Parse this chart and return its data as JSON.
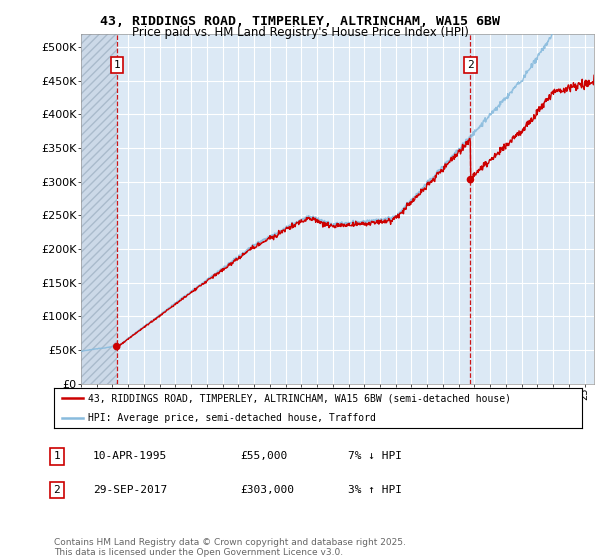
{
  "title_line1": "43, RIDDINGS ROAD, TIMPERLEY, ALTRINCHAM, WA15 6BW",
  "title_line2": "Price paid vs. HM Land Registry's House Price Index (HPI)",
  "ylim": [
    0,
    520000
  ],
  "yticks": [
    0,
    50000,
    100000,
    150000,
    200000,
    250000,
    300000,
    350000,
    400000,
    450000,
    500000
  ],
  "ytick_labels": [
    "£0",
    "£50K",
    "£100K",
    "£150K",
    "£200K",
    "£250K",
    "£300K",
    "£350K",
    "£400K",
    "£450K",
    "£500K"
  ],
  "xlim_start": 1993,
  "xlim_end": 2025.6,
  "plot_bg_color": "#dce9f5",
  "hatch_bg_color": "#ccd9e8",
  "grid_color": "#ffffff",
  "sale1_x": 1995.27,
  "sale1_y": 55000,
  "sale2_x": 2017.75,
  "sale2_y": 303000,
  "sale_color": "#cc0000",
  "hpi_color": "#88bbdd",
  "legend_label1": "43, RIDDINGS ROAD, TIMPERLEY, ALTRINCHAM, WA15 6BW (semi-detached house)",
  "legend_label2": "HPI: Average price, semi-detached house, Trafford",
  "footer_text": "Contains HM Land Registry data © Crown copyright and database right 2025.\nThis data is licensed under the Open Government Licence v3.0.",
  "table_row1": [
    "1",
    "10-APR-1995",
    "£55,000",
    "7% ↓ HPI"
  ],
  "table_row2": [
    "2",
    "29-SEP-2017",
    "£303,000",
    "3% ↑ HPI"
  ]
}
